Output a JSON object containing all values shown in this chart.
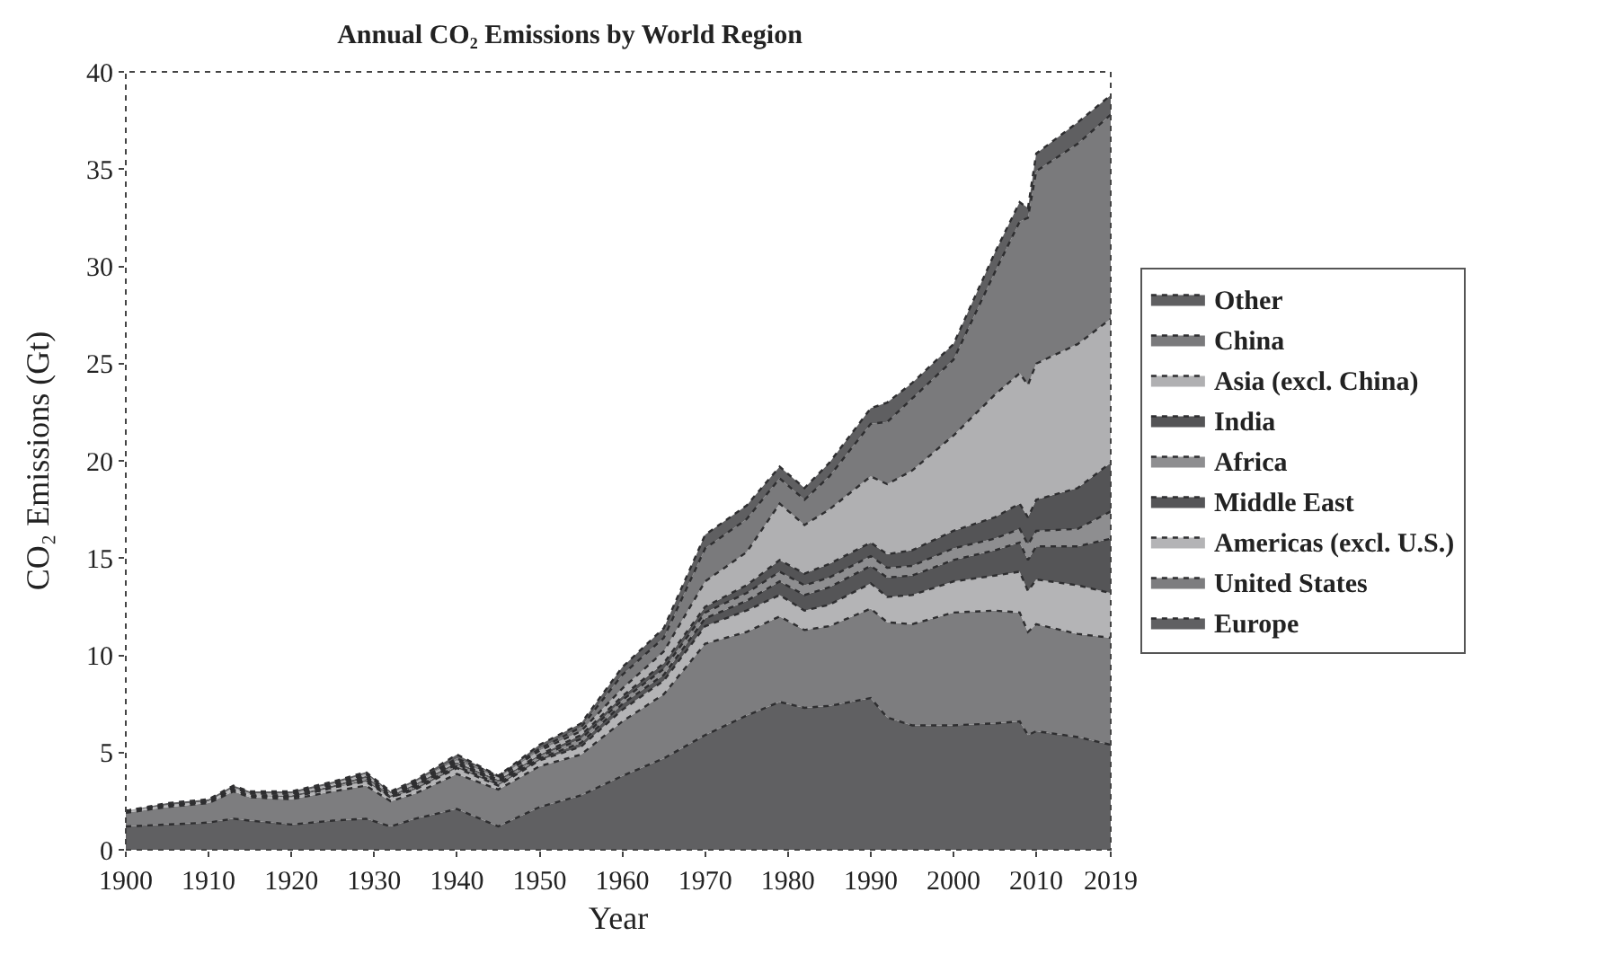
{
  "chart_data": {
    "type": "area",
    "stacked": true,
    "title": "Annual CO₂ Emissions by World Region",
    "xlabel": "Year",
    "ylabel": "CO₂ Emissions (Gt)",
    "x": [
      1900,
      1905,
      1910,
      1913,
      1915,
      1920,
      1925,
      1929,
      1932,
      1935,
      1940,
      1945,
      1950,
      1955,
      1960,
      1965,
      1970,
      1975,
      1979,
      1982,
      1985,
      1990,
      1992,
      1995,
      2000,
      2005,
      2008,
      2009,
      2010,
      2015,
      2019
    ],
    "xlim": [
      1900,
      2019
    ],
    "xticks": [
      1900,
      1910,
      1920,
      1930,
      1940,
      1950,
      1960,
      1970,
      1980,
      1990,
      2000,
      2010,
      2019
    ],
    "ylim": [
      0,
      40
    ],
    "yticks": [
      0,
      5,
      10,
      15,
      20,
      25,
      30,
      35,
      40
    ],
    "legend": "right",
    "line_style": "dotted",
    "series": [
      {
        "name": "Europe",
        "color": "#606062",
        "values": [
          1.2,
          1.3,
          1.4,
          1.6,
          1.5,
          1.3,
          1.5,
          1.6,
          1.2,
          1.6,
          2.1,
          1.2,
          2.2,
          2.8,
          3.8,
          4.7,
          5.9,
          6.9,
          7.6,
          7.3,
          7.4,
          7.8,
          6.8,
          6.4,
          6.4,
          6.5,
          6.6,
          5.9,
          6.1,
          5.8,
          5.4
        ]
      },
      {
        "name": "United States",
        "color": "#7d7d7f",
        "values": [
          0.7,
          0.9,
          1.0,
          1.4,
          1.2,
          1.3,
          1.5,
          1.7,
          1.3,
          1.3,
          1.8,
          1.9,
          2.1,
          2.1,
          2.8,
          3.3,
          4.7,
          4.3,
          4.4,
          4.0,
          4.1,
          4.6,
          4.9,
          5.2,
          5.8,
          5.8,
          5.6,
          5.3,
          5.5,
          5.3,
          5.5
        ]
      },
      {
        "name": "Americas (excl. U.S.)",
        "color": "#b4b4b6",
        "values": [
          0.1,
          0.1,
          0.1,
          0.1,
          0.1,
          0.1,
          0.2,
          0.2,
          0.2,
          0.2,
          0.3,
          0.2,
          0.3,
          0.4,
          0.6,
          0.7,
          0.9,
          1.1,
          1.1,
          1.0,
          1.1,
          1.3,
          1.3,
          1.5,
          1.6,
          1.8,
          2.1,
          2.1,
          2.3,
          2.5,
          2.3
        ]
      },
      {
        "name": "Middle East",
        "color": "#555557",
        "values": [
          0.0,
          0.0,
          0.0,
          0.0,
          0.0,
          0.0,
          0.0,
          0.1,
          0.0,
          0.1,
          0.1,
          0.1,
          0.1,
          0.2,
          0.3,
          0.3,
          0.4,
          0.5,
          0.7,
          0.8,
          0.9,
          0.9,
          1.0,
          1.0,
          1.1,
          1.3,
          1.5,
          1.6,
          1.7,
          2.0,
          2.8
        ]
      },
      {
        "name": "Africa",
        "color": "#8e8e90",
        "values": [
          0.0,
          0.0,
          0.0,
          0.0,
          0.0,
          0.0,
          0.0,
          0.1,
          0.0,
          0.1,
          0.1,
          0.1,
          0.1,
          0.2,
          0.2,
          0.3,
          0.3,
          0.4,
          0.5,
          0.5,
          0.5,
          0.5,
          0.5,
          0.5,
          0.6,
          0.6,
          0.7,
          0.8,
          0.8,
          0.9,
          1.4
        ]
      },
      {
        "name": "India",
        "color": "#545456",
        "values": [
          0.0,
          0.0,
          0.0,
          0.0,
          0.0,
          0.1,
          0.1,
          0.1,
          0.1,
          0.1,
          0.1,
          0.1,
          0.1,
          0.2,
          0.2,
          0.3,
          0.3,
          0.4,
          0.6,
          0.6,
          0.7,
          0.7,
          0.7,
          0.8,
          0.9,
          1.1,
          1.3,
          1.4,
          1.6,
          2.1,
          2.5
        ]
      },
      {
        "name": "Asia (excl. China)",
        "color": "#b0b0b2",
        "values": [
          0.0,
          0.0,
          0.0,
          0.1,
          0.1,
          0.1,
          0.1,
          0.1,
          0.1,
          0.1,
          0.1,
          0.1,
          0.2,
          0.2,
          0.4,
          0.6,
          1.3,
          1.7,
          2.9,
          2.5,
          2.8,
          3.4,
          3.6,
          4.1,
          4.9,
          6.3,
          6.7,
          6.8,
          7.0,
          7.4,
          7.4
        ]
      },
      {
        "name": "China",
        "color": "#7a7a7c",
        "values": [
          0.0,
          0.0,
          0.0,
          0.0,
          0.0,
          0.0,
          0.0,
          0.0,
          0.0,
          0.0,
          0.1,
          0.1,
          0.1,
          0.2,
          0.7,
          0.7,
          1.7,
          1.7,
          1.3,
          1.3,
          1.7,
          2.7,
          3.2,
          3.7,
          3.9,
          6.3,
          7.8,
          8.6,
          9.9,
          10.3,
          10.5
        ]
      },
      {
        "name": "Other",
        "color": "#5f5f61",
        "values": [
          0.0,
          0.1,
          0.1,
          0.1,
          0.1,
          0.1,
          0.1,
          0.1,
          0.1,
          0.1,
          0.2,
          0.0,
          0.2,
          0.2,
          0.4,
          0.5,
          0.7,
          0.7,
          0.6,
          0.6,
          0.7,
          0.8,
          1.0,
          0.8,
          0.8,
          1.0,
          1.0,
          0.5,
          0.9,
          1.1,
          1.0
        ]
      }
    ]
  }
}
